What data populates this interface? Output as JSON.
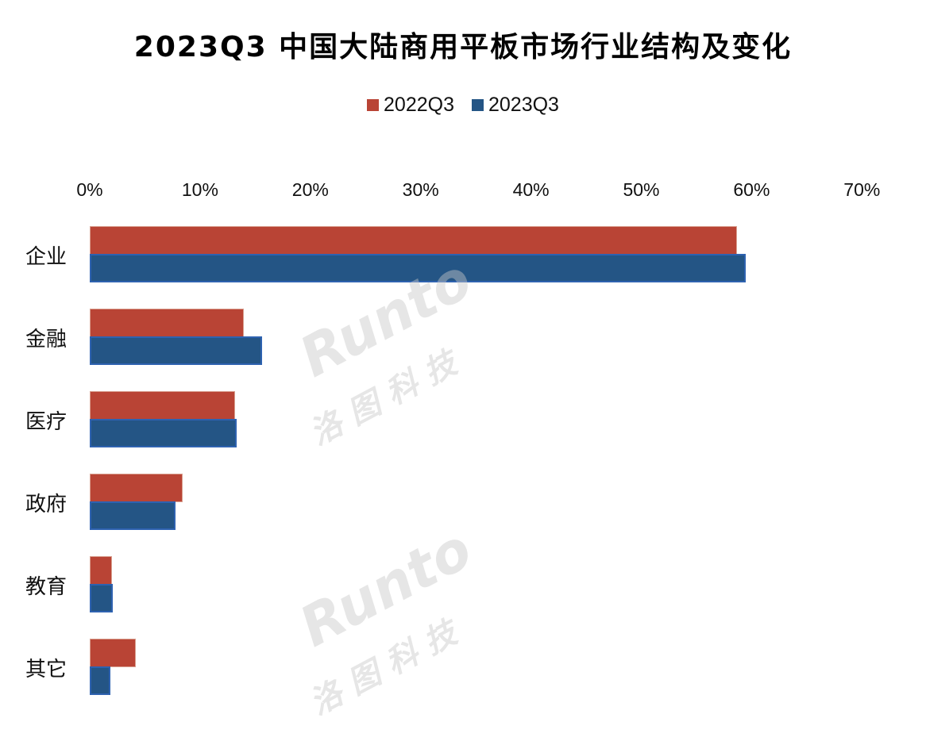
{
  "title": "2023Q3 中国大陆商用平板市场行业结构及变化",
  "legend": [
    {
      "label": "2022Q3",
      "color": "#b94435"
    },
    {
      "label": "2023Q3",
      "color": "#245585"
    }
  ],
  "ticks": [
    "0%",
    "10%",
    "20%",
    "30%",
    "40%",
    "50%",
    "60%",
    "70%"
  ],
  "watermark": {
    "brand": "Runto",
    "cn": "洛 图 科 技"
  },
  "chart_data": {
    "type": "bar",
    "orientation": "horizontal",
    "title": "2023Q3 中国大陆商用平板市场行业结构及变化",
    "categories": [
      "企业",
      "金融",
      "医疗",
      "政府",
      "教育",
      "其它"
    ],
    "series": [
      {
        "name": "2022Q3",
        "values": [
          58.7,
          14.0,
          13.2,
          8.4,
          2.0,
          4.2
        ]
      },
      {
        "name": "2023Q3",
        "values": [
          59.5,
          15.6,
          13.3,
          7.8,
          2.1,
          1.9
        ]
      }
    ],
    "xlabel": "",
    "ylabel": "",
    "xlim": [
      0,
      70
    ],
    "x_tick_labels": [
      "0%",
      "10%",
      "20%",
      "30%",
      "40%",
      "50%",
      "60%",
      "70%"
    ],
    "axis_position": "top",
    "legend_position": "top",
    "grid": false
  }
}
